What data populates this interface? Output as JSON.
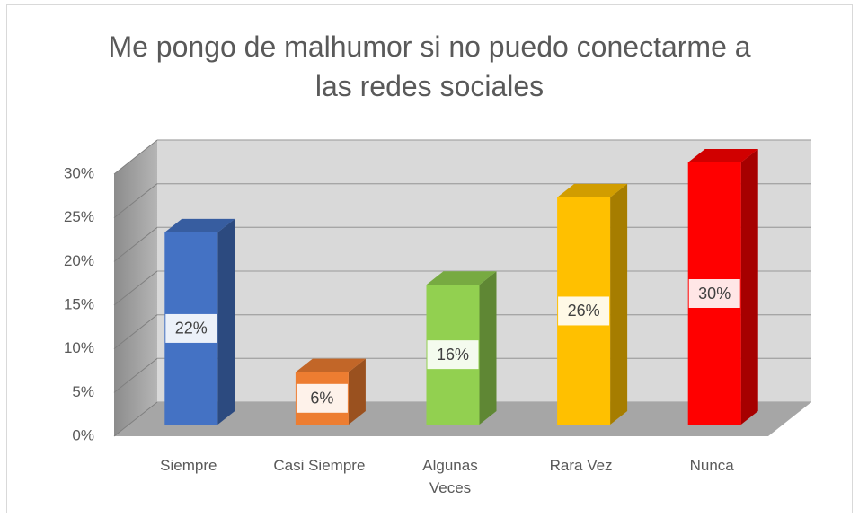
{
  "chart_data": {
    "type": "bar3d",
    "title": "Me pongo de malhumor si no puedo conectarme a las redes sociales",
    "categories": [
      "Siempre",
      "Casi Siempre",
      "Algunas Veces",
      "Rara Vez",
      "Nunca"
    ],
    "values": [
      22,
      6,
      16,
      26,
      30
    ],
    "value_labels": [
      "22%",
      "6%",
      "16%",
      "26%",
      "30%"
    ],
    "colors": [
      "#4472c4",
      "#ed7d31",
      "#92d050",
      "#ffc000",
      "#ff0000"
    ],
    "ylim": [
      0,
      30
    ],
    "yticks": [
      {
        "value": 0,
        "label": "0%"
      },
      {
        "value": 5,
        "label": "5%"
      },
      {
        "value": 10,
        "label": "10%"
      },
      {
        "value": 15,
        "label": "15%"
      },
      {
        "value": 20,
        "label": "20%"
      },
      {
        "value": 25,
        "label": "25%"
      },
      {
        "value": 30,
        "label": "30%"
      }
    ],
    "grid": true
  }
}
